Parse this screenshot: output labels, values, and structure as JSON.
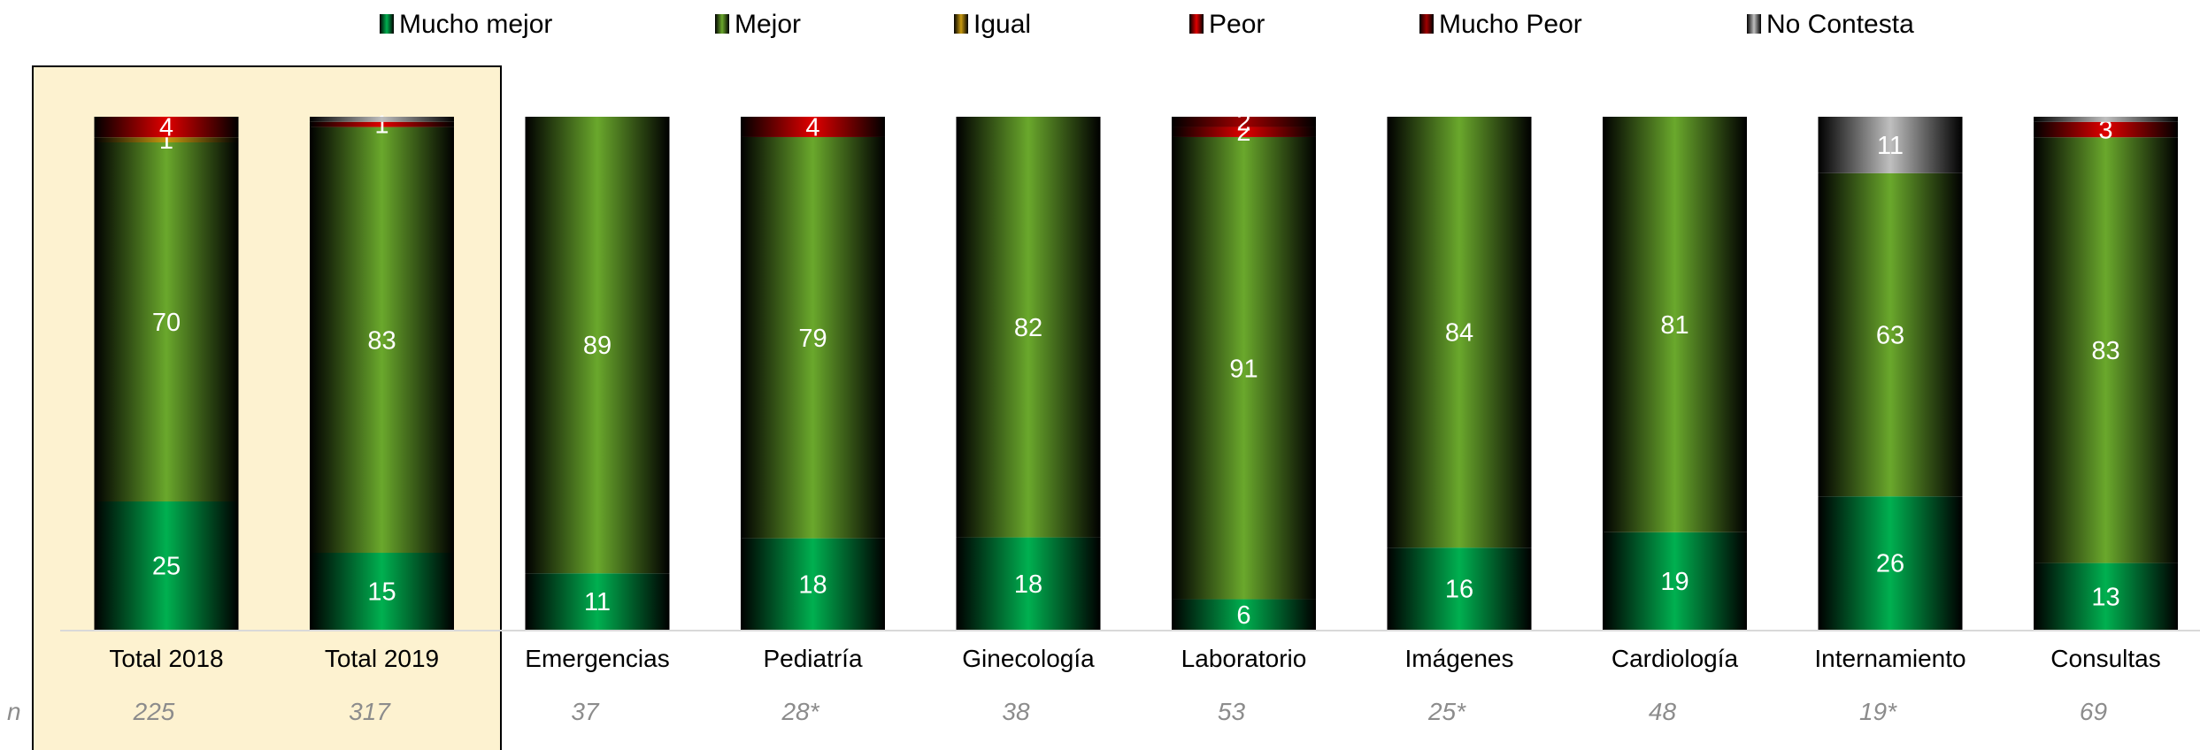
{
  "chart_data": {
    "type": "bar",
    "stacked": true,
    "percent_stacked": true,
    "legend_position": "top",
    "grid": false,
    "highlight_categories": [
      "Total 2018",
      "Total 2019"
    ],
    "n_prefix": "n",
    "categories": [
      "Total 2018",
      "Total 2019",
      "Emergencias",
      "Pediatría",
      "Ginecología",
      "Laboratorio",
      "Imágenes",
      "Cardiología",
      "Internamiento",
      "Consultas"
    ],
    "n_values": [
      "225",
      "317",
      "37",
      "28*",
      "38",
      "53",
      "25*",
      "48",
      "19*",
      "69"
    ],
    "series": [
      {
        "name": "Mucho mejor",
        "color": "#00b050",
        "values": [
          25,
          15,
          11,
          18,
          18,
          6,
          16,
          19,
          26,
          13
        ],
        "labels": [
          "25",
          "15",
          "11",
          "18",
          "18",
          "6",
          "16",
          "19",
          "26",
          "13"
        ]
      },
      {
        "name": "Mejor",
        "color": "#6aa82c",
        "values": [
          70,
          83,
          89,
          79,
          82,
          91,
          84,
          81,
          63,
          83
        ],
        "labels": [
          "70",
          "83",
          "89",
          "79",
          "82",
          "91",
          "84",
          "81",
          "63",
          "83"
        ]
      },
      {
        "name": "Igual",
        "color": "#c89a10",
        "values": [
          1,
          0,
          0,
          0,
          0,
          0,
          0,
          0,
          0,
          0
        ],
        "labels": [
          "1",
          "",
          "",
          "",
          "",
          "",
          "",
          "",
          "",
          ""
        ]
      },
      {
        "name": "Peor",
        "color": "#e00000",
        "values": [
          4,
          1,
          0,
          4,
          0,
          2,
          0,
          0,
          0,
          3
        ],
        "labels": [
          "4",
          "1",
          "",
          "4",
          "",
          "2",
          "",
          "",
          "",
          "3"
        ]
      },
      {
        "name": "Mucho Peor",
        "color": "#a00000",
        "values": [
          0,
          0,
          0,
          0,
          0,
          2,
          0,
          0,
          0,
          0
        ],
        "labels": [
          "",
          "",
          "",
          "",
          "",
          "2",
          "",
          "",
          "",
          ""
        ]
      },
      {
        "name": "No Contesta",
        "color": "#bfbfbf",
        "values": [
          0,
          1,
          0,
          0,
          0,
          0,
          0,
          0,
          11,
          1
        ],
        "labels": [
          "",
          "",
          "",
          "",
          "",
          "",
          "",
          "",
          "11",
          ""
        ]
      }
    ]
  }
}
